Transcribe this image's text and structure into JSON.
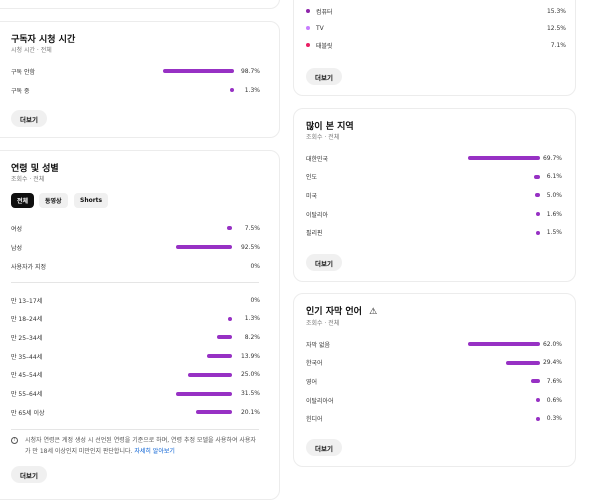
{
  "colors": {
    "accent": "#9731c4",
    "computer": "#8e24aa",
    "tv": "#c77dff",
    "tablet": "#e91e63",
    "link": "#065fd4"
  },
  "device": {
    "rows": [
      {
        "label": "컴퓨터",
        "value": "15.3%",
        "color": "#8e24aa"
      },
      {
        "label": "TV",
        "value": "12.5%",
        "color": "#c77dff"
      },
      {
        "label": "태블릿",
        "value": "7.1%",
        "color": "#e91e63"
      }
    ],
    "more": "더보기"
  },
  "subscriber": {
    "title": "구독자 시청 시간",
    "subtitle": "시청 시간 · 전체",
    "rows": [
      {
        "label": "구독 안함",
        "value": "98.7%",
        "pct": 98.7
      },
      {
        "label": "구독 중",
        "value": "1.3%",
        "pct": 1.3
      }
    ],
    "more": "더보기"
  },
  "age_gender": {
    "title": "연령 및 성별",
    "subtitle": "조회수 · 전체",
    "chips": [
      "전체",
      "동영상",
      "Shorts"
    ],
    "gender": [
      {
        "label": "여성",
        "value": "7.5%",
        "pct": 7.5
      },
      {
        "label": "남성",
        "value": "92.5%",
        "pct": 92.5
      },
      {
        "label": "사용자가 지정",
        "value": "0%",
        "pct": 0
      }
    ],
    "ages": [
      {
        "label": "만 13–17세",
        "value": "0%",
        "pct": 0
      },
      {
        "label": "만 18–24세",
        "value": "1.3%",
        "pct": 1.3
      },
      {
        "label": "만 25–34세",
        "value": "8.2%",
        "pct": 8.2
      },
      {
        "label": "만 35–44세",
        "value": "13.9%",
        "pct": 13.9
      },
      {
        "label": "만 45–54세",
        "value": "25.0%",
        "pct": 25.0
      },
      {
        "label": "만 55–64세",
        "value": "31.5%",
        "pct": 31.5
      },
      {
        "label": "만 65세 이상",
        "value": "20.1%",
        "pct": 20.1
      }
    ],
    "info": "시청자 연령은 계정 생성 시 선언된 연령을 기준으로 하며, 연령 추정 모델을 사용하여 사용자가 만 18세 이상인지 미만인지 판단합니다.",
    "info_link": "자세히 알아보기",
    "more": "더보기"
  },
  "regions": {
    "title": "많이 본 지역",
    "subtitle": "조회수 · 전체",
    "rows": [
      {
        "label": "대한민국",
        "value": "69.7%",
        "pct": 69.7
      },
      {
        "label": "인도",
        "value": "6.1%",
        "pct": 6.1
      },
      {
        "label": "미국",
        "value": "5.0%",
        "pct": 5.0
      },
      {
        "label": "이탈리아",
        "value": "1.6%",
        "pct": 1.6
      },
      {
        "label": "필리핀",
        "value": "1.5%",
        "pct": 1.5
      }
    ],
    "more": "더보기"
  },
  "subtitles": {
    "title": "인기 자막 언어",
    "subtitle": "조회수 · 전체",
    "rows": [
      {
        "label": "자막 없음",
        "value": "62.0%",
        "pct": 62.0
      },
      {
        "label": "한국어",
        "value": "29.4%",
        "pct": 29.4
      },
      {
        "label": "영어",
        "value": "7.6%",
        "pct": 7.6
      },
      {
        "label": "이탈리아어",
        "value": "0.6%",
        "pct": 0.6
      },
      {
        "label": "힌디어",
        "value": "0.3%",
        "pct": 0.3
      }
    ],
    "more": "더보기"
  }
}
